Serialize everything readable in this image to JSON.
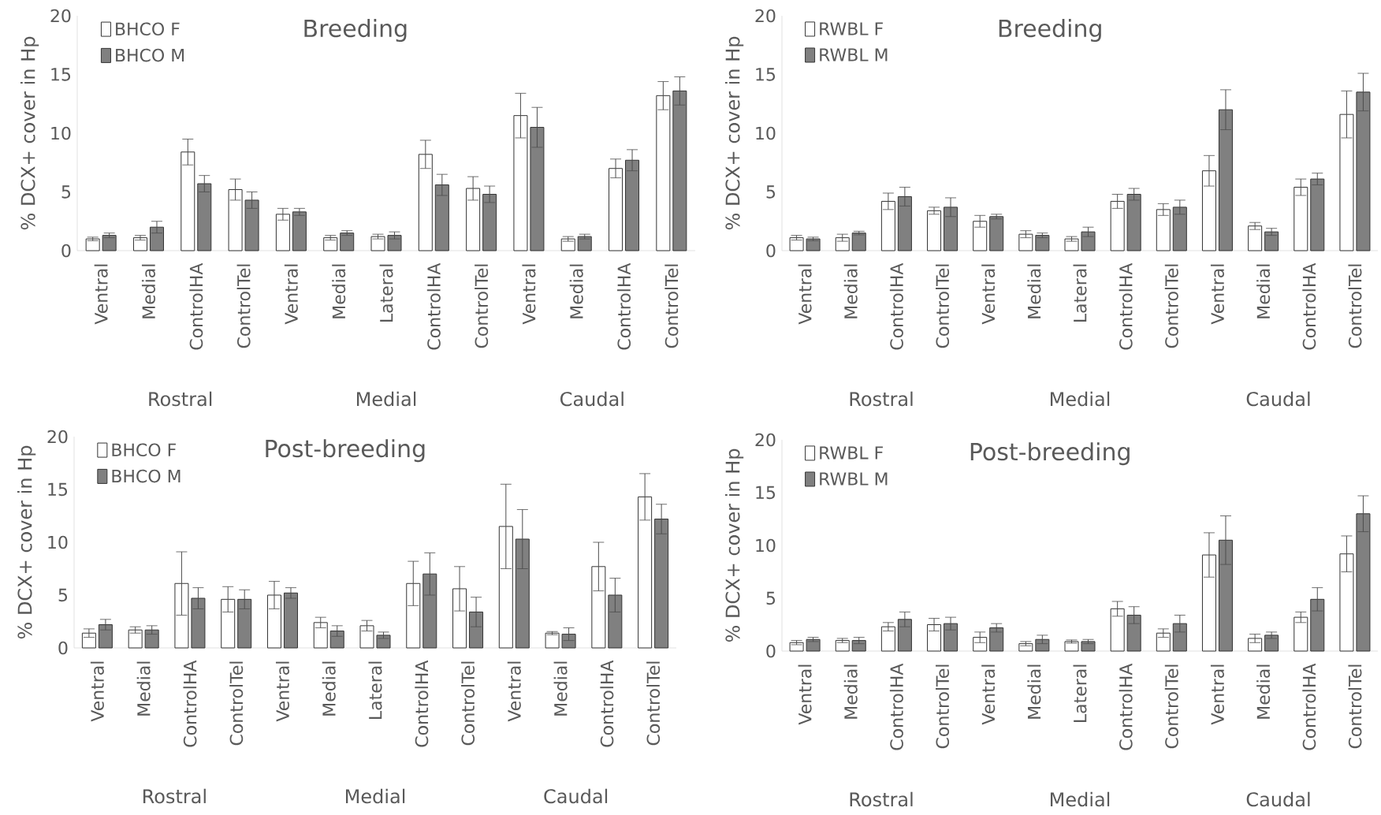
{
  "chart_data": [
    {
      "type": "bar",
      "title": "Breeding",
      "ylabel": "% DCX+ cover in Hp",
      "categories": [
        "Ventral",
        "Medial",
        "ControlHA",
        "ControlTel",
        "Ventral",
        "Medial",
        "Lateral",
        "ControlHA",
        "ControlTel",
        "Ventral",
        "Medial",
        "ControlHA",
        "ControlTel"
      ],
      "ylim": [
        0,
        20
      ],
      "yticks": [
        0,
        5,
        10,
        15,
        20
      ],
      "legend": "top left",
      "annotations": [
        "Rostral",
        "Medial",
        "Caudal"
      ],
      "series": [
        {
          "name": "BHCO F",
          "color": "#ffffff",
          "values": [
            1.0,
            1.1,
            8.4,
            5.2,
            3.1,
            1.1,
            1.2,
            8.2,
            5.3,
            11.5,
            1.0,
            7.0,
            13.2
          ],
          "errors": [
            0.15,
            0.2,
            1.1,
            0.9,
            0.5,
            0.2,
            0.2,
            1.2,
            1.0,
            1.9,
            0.2,
            0.8,
            1.2
          ]
        },
        {
          "name": "BHCO M",
          "color": "#808080",
          "values": [
            1.3,
            2.0,
            5.7,
            4.3,
            3.3,
            1.5,
            1.3,
            5.6,
            4.8,
            10.5,
            1.2,
            7.7,
            13.6
          ],
          "errors": [
            0.2,
            0.5,
            0.7,
            0.7,
            0.3,
            0.2,
            0.3,
            0.9,
            0.7,
            1.7,
            0.2,
            0.9,
            1.2
          ]
        }
      ]
    },
    {
      "type": "bar",
      "title": "Breeding",
      "ylabel": "% DCX+ cover in Hp",
      "categories": [
        "Ventral",
        "Medial",
        "ControlHA",
        "ControlTel",
        "Ventral",
        "Medial",
        "Lateral",
        "ControlHA",
        "ControlTel",
        "Ventral",
        "Medial",
        "ControlHA",
        "ControlTel"
      ],
      "ylim": [
        0,
        20
      ],
      "yticks": [
        0,
        5,
        10,
        15,
        20
      ],
      "legend": "top left",
      "annotations": [
        "Rostral",
        "Medial",
        "Caudal"
      ],
      "series": [
        {
          "name": "RWBL F",
          "color": "#ffffff",
          "values": [
            1.1,
            1.1,
            4.2,
            3.4,
            2.5,
            1.4,
            1.0,
            4.2,
            3.5,
            6.8,
            2.1,
            5.4,
            11.6
          ],
          "errors": [
            0.2,
            0.3,
            0.7,
            0.3,
            0.5,
            0.3,
            0.2,
            0.6,
            0.5,
            1.3,
            0.3,
            0.7,
            2.0
          ]
        },
        {
          "name": "RWBL M",
          "color": "#808080",
          "values": [
            1.0,
            1.5,
            4.6,
            3.7,
            2.9,
            1.3,
            1.6,
            4.8,
            3.7,
            12.0,
            1.6,
            6.1,
            13.5
          ],
          "errors": [
            0.15,
            0.15,
            0.8,
            0.8,
            0.2,
            0.2,
            0.4,
            0.5,
            0.6,
            1.7,
            0.3,
            0.5,
            1.6
          ]
        }
      ]
    },
    {
      "type": "bar",
      "title": "Post-breeding",
      "ylabel": "% DCX+ cover in Hp",
      "categories": [
        "Ventral",
        "Medial",
        "ControlHA",
        "ControlTel",
        "Ventral",
        "Medial",
        "Lateral",
        "ControlHA",
        "ControlTel",
        "Ventral",
        "Medial",
        "ControlHA",
        "ControlTel"
      ],
      "ylim": [
        0,
        20
      ],
      "yticks": [
        0,
        5,
        10,
        15,
        20
      ],
      "legend": "top left",
      "annotations": [
        "Rostral",
        "Medial",
        "Caudal"
      ],
      "series": [
        {
          "name": "BHCO F",
          "color": "#ffffff",
          "values": [
            1.4,
            1.7,
            6.1,
            4.6,
            5.0,
            2.4,
            2.1,
            6.1,
            5.6,
            11.5,
            1.4,
            7.7,
            14.3
          ],
          "errors": [
            0.4,
            0.3,
            3.0,
            1.2,
            1.3,
            0.5,
            0.5,
            2.1,
            2.1,
            4.0,
            0.15,
            2.3,
            2.2
          ]
        },
        {
          "name": "BHCO M",
          "color": "#808080",
          "values": [
            2.2,
            1.7,
            4.7,
            4.6,
            5.2,
            1.6,
            1.2,
            7.0,
            3.4,
            10.3,
            1.3,
            5.0,
            12.2
          ],
          "errors": [
            0.5,
            0.4,
            1.0,
            0.9,
            0.5,
            0.5,
            0.3,
            2.0,
            1.4,
            2.8,
            0.6,
            1.6,
            1.4
          ]
        }
      ]
    },
    {
      "type": "bar",
      "title": "Post-breeding",
      "ylabel": "% DCX+ cover in Hp",
      "categories": [
        "Ventral",
        "Medial",
        "ControlHA",
        "ControlTel",
        "Ventral",
        "Medial",
        "Lateral",
        "ControlHA",
        "ControlTel",
        "Ventral",
        "Medial",
        "ControlHA",
        "ControlTel"
      ],
      "ylim": [
        0,
        20
      ],
      "yticks": [
        0,
        5,
        10,
        15,
        20
      ],
      "legend": "top left",
      "annotations": [
        "Rostral",
        "Medial",
        "Caudal"
      ],
      "series": [
        {
          "name": "RWBL F",
          "color": "#ffffff",
          "values": [
            0.8,
            1.0,
            2.3,
            2.5,
            1.3,
            0.7,
            0.9,
            4.0,
            1.7,
            9.1,
            1.2,
            3.2,
            9.2
          ],
          "errors": [
            0.2,
            0.2,
            0.4,
            0.6,
            0.5,
            0.2,
            0.15,
            0.7,
            0.4,
            2.1,
            0.4,
            0.5,
            1.7
          ]
        },
        {
          "name": "RWBL M",
          "color": "#808080",
          "values": [
            1.1,
            1.0,
            3.0,
            2.6,
            2.2,
            1.1,
            0.9,
            3.4,
            2.6,
            10.5,
            1.5,
            4.9,
            13.0
          ],
          "errors": [
            0.2,
            0.3,
            0.7,
            0.6,
            0.4,
            0.4,
            0.2,
            0.8,
            0.8,
            2.3,
            0.3,
            1.1,
            1.7
          ]
        }
      ]
    }
  ]
}
